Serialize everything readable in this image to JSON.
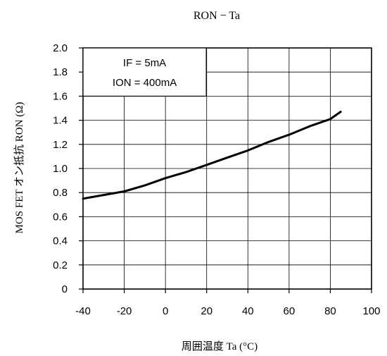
{
  "chart_data": {
    "type": "line",
    "title": "RON − Ta",
    "xlabel": "周囲温度  Ta (°C)",
    "ylabel": "MOS FET オン抵抗  RON (Ω)",
    "xlim": [
      -40,
      100
    ],
    "ylim": [
      0,
      2.0
    ],
    "xticks": [
      -40,
      -20,
      0,
      20,
      40,
      60,
      80,
      100
    ],
    "xtick_labels": [
      "-40",
      "-20",
      "0",
      "20",
      "40",
      "60",
      "80",
      "100"
    ],
    "yticks": [
      0,
      0.2,
      0.4,
      0.6,
      0.8,
      1.0,
      1.2,
      1.4,
      1.6,
      1.8,
      2.0
    ],
    "ytick_labels": [
      "0",
      "0.2",
      "0.4",
      "0.6",
      "0.8",
      "1.0",
      "1.2",
      "1.4",
      "1.6",
      "1.8",
      "2.0"
    ],
    "grid": true,
    "annotation_lines": [
      "IF = 5mA",
      "ION = 400mA"
    ],
    "annotation_position": "top-left",
    "series": [
      {
        "color": "#000000",
        "x": [
          -40,
          -30,
          -20,
          -10,
          0,
          10,
          20,
          30,
          40,
          50,
          60,
          70,
          80,
          85
        ],
        "y": [
          0.75,
          0.78,
          0.81,
          0.86,
          0.92,
          0.97,
          1.03,
          1.09,
          1.15,
          1.22,
          1.28,
          1.35,
          1.41,
          1.47
        ]
      }
    ]
  }
}
